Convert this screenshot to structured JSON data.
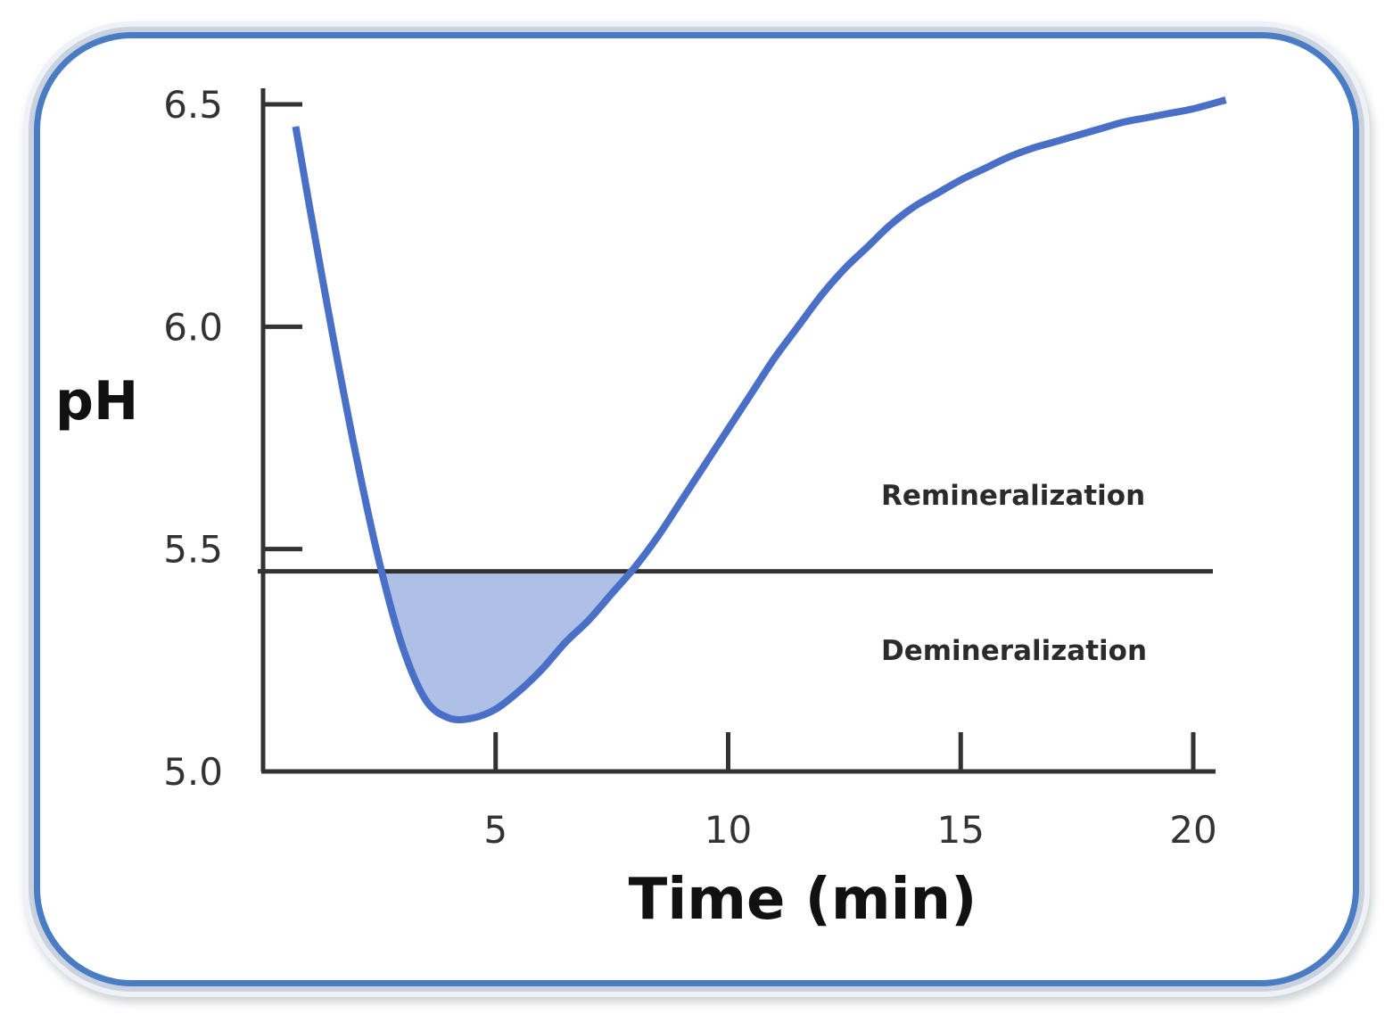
{
  "chart_data": {
    "type": "line",
    "ylabel": "pH",
    "xlabel": "Time (min)",
    "xlim": [
      0,
      20
    ],
    "ylim": [
      5.0,
      6.5
    ],
    "x_ticks": [
      5,
      10,
      15,
      20
    ],
    "x_tick_labels": [
      "5",
      "10",
      "15",
      "20"
    ],
    "y_ticks": [
      5.0,
      5.5,
      6.0,
      6.5
    ],
    "y_tick_labels": [
      "5.0",
      "5.5",
      "6.0",
      "6.5"
    ],
    "threshold": {
      "value": 5.45,
      "label_above": "Remineralization",
      "label_below": "Demineralization"
    },
    "series": [
      {
        "color": "#4a6fc7",
        "fill_below_threshold_color": "#aec0e6",
        "x": [
          0.7,
          1.0,
          1.5,
          2.0,
          2.5,
          3.0,
          3.5,
          4.0,
          4.5,
          5.0,
          5.5,
          6.0,
          6.5,
          7.0,
          7.5,
          8.0,
          8.5,
          9.0,
          9.5,
          10.0,
          10.5,
          11.0,
          11.5,
          12.0,
          12.5,
          13.0,
          13.5,
          14.0,
          14.5,
          15.0,
          15.5,
          16.0,
          16.5,
          17.0,
          17.5,
          18.0,
          18.5,
          19.0,
          19.5,
          20.0,
          20.7
        ],
        "y": [
          6.45,
          6.27,
          5.98,
          5.71,
          5.47,
          5.28,
          5.16,
          5.12,
          5.12,
          5.14,
          5.18,
          5.23,
          5.29,
          5.34,
          5.4,
          5.46,
          5.53,
          5.61,
          5.69,
          5.77,
          5.85,
          5.93,
          6.0,
          6.07,
          6.13,
          6.18,
          6.23,
          6.27,
          6.3,
          6.33,
          6.355,
          6.38,
          6.4,
          6.415,
          6.43,
          6.445,
          6.46,
          6.47,
          6.48,
          6.49,
          6.51
        ]
      }
    ]
  }
}
